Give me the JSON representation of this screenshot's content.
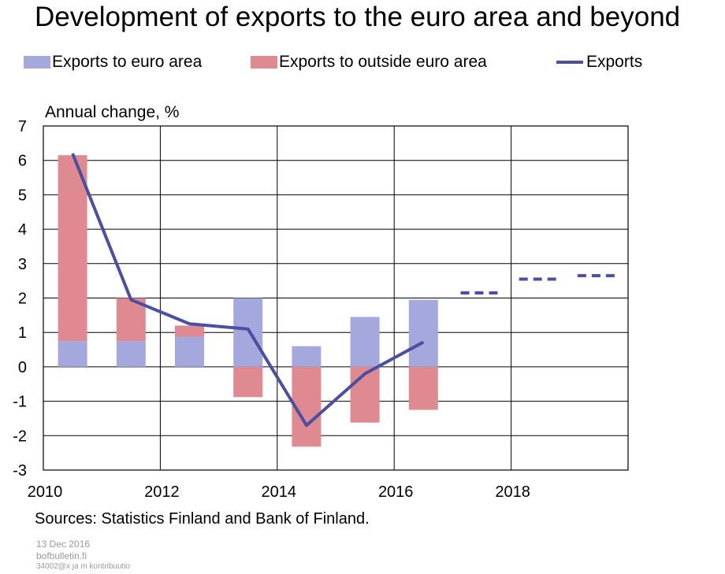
{
  "title": "Development of exports to the euro area and beyond",
  "legend": {
    "euro_area": "Exports to euro area",
    "outside_euro_area": "Exports to outside euro area",
    "exports": "Exports"
  },
  "colors": {
    "euro_area": "#a5a8dd",
    "outside_euro_area": "#de8a90",
    "exports": "#4a4fa3",
    "grid": "#000000"
  },
  "chart_data": {
    "type": "bar",
    "stacked": true,
    "ylabel": "Annual change, %",
    "ylim": [
      -3,
      7
    ],
    "yticks": [
      "7",
      "6",
      "5",
      "4",
      "3",
      "2",
      "1",
      "0",
      "-1",
      "-2",
      "-3"
    ],
    "x_tick_labels": [
      "2010",
      "2012",
      "2014",
      "2016",
      "2018"
    ],
    "x_range": [
      2010,
      2020
    ],
    "categories": [
      "2010",
      "2011",
      "2012",
      "2013",
      "2014",
      "2015",
      "2016"
    ],
    "series": [
      {
        "name": "Exports to euro area",
        "kind": "bar",
        "values": [
          0.75,
          0.75,
          0.88,
          2.0,
          0.6,
          1.45,
          1.95
        ]
      },
      {
        "name": "Exports to outside euro area",
        "kind": "bar",
        "values": [
          5.4,
          1.25,
          0.32,
          -0.88,
          -2.32,
          -1.62,
          -1.25
        ]
      },
      {
        "name": "Exports",
        "kind": "line",
        "x": [
          2010.5,
          2011.5,
          2012.5,
          2013.5,
          2014.5,
          2015.5,
          2016.5
        ],
        "values": [
          6.2,
          1.95,
          1.25,
          1.1,
          -1.7,
          -0.2,
          0.72
        ]
      },
      {
        "name": "Exports",
        "kind": "line-forecast",
        "style": "dashed",
        "x": [
          2017.5,
          2018.5,
          2019.5
        ],
        "values": [
          2.15,
          2.55,
          2.65
        ]
      }
    ],
    "grid": true
  },
  "sources": "Sources: Statistics Finland and Bank of Finland.",
  "footer": {
    "date": "13 Dec 2016",
    "site": "bofbulletin.fi",
    "code": "34002@x ja m kontribuutio"
  }
}
